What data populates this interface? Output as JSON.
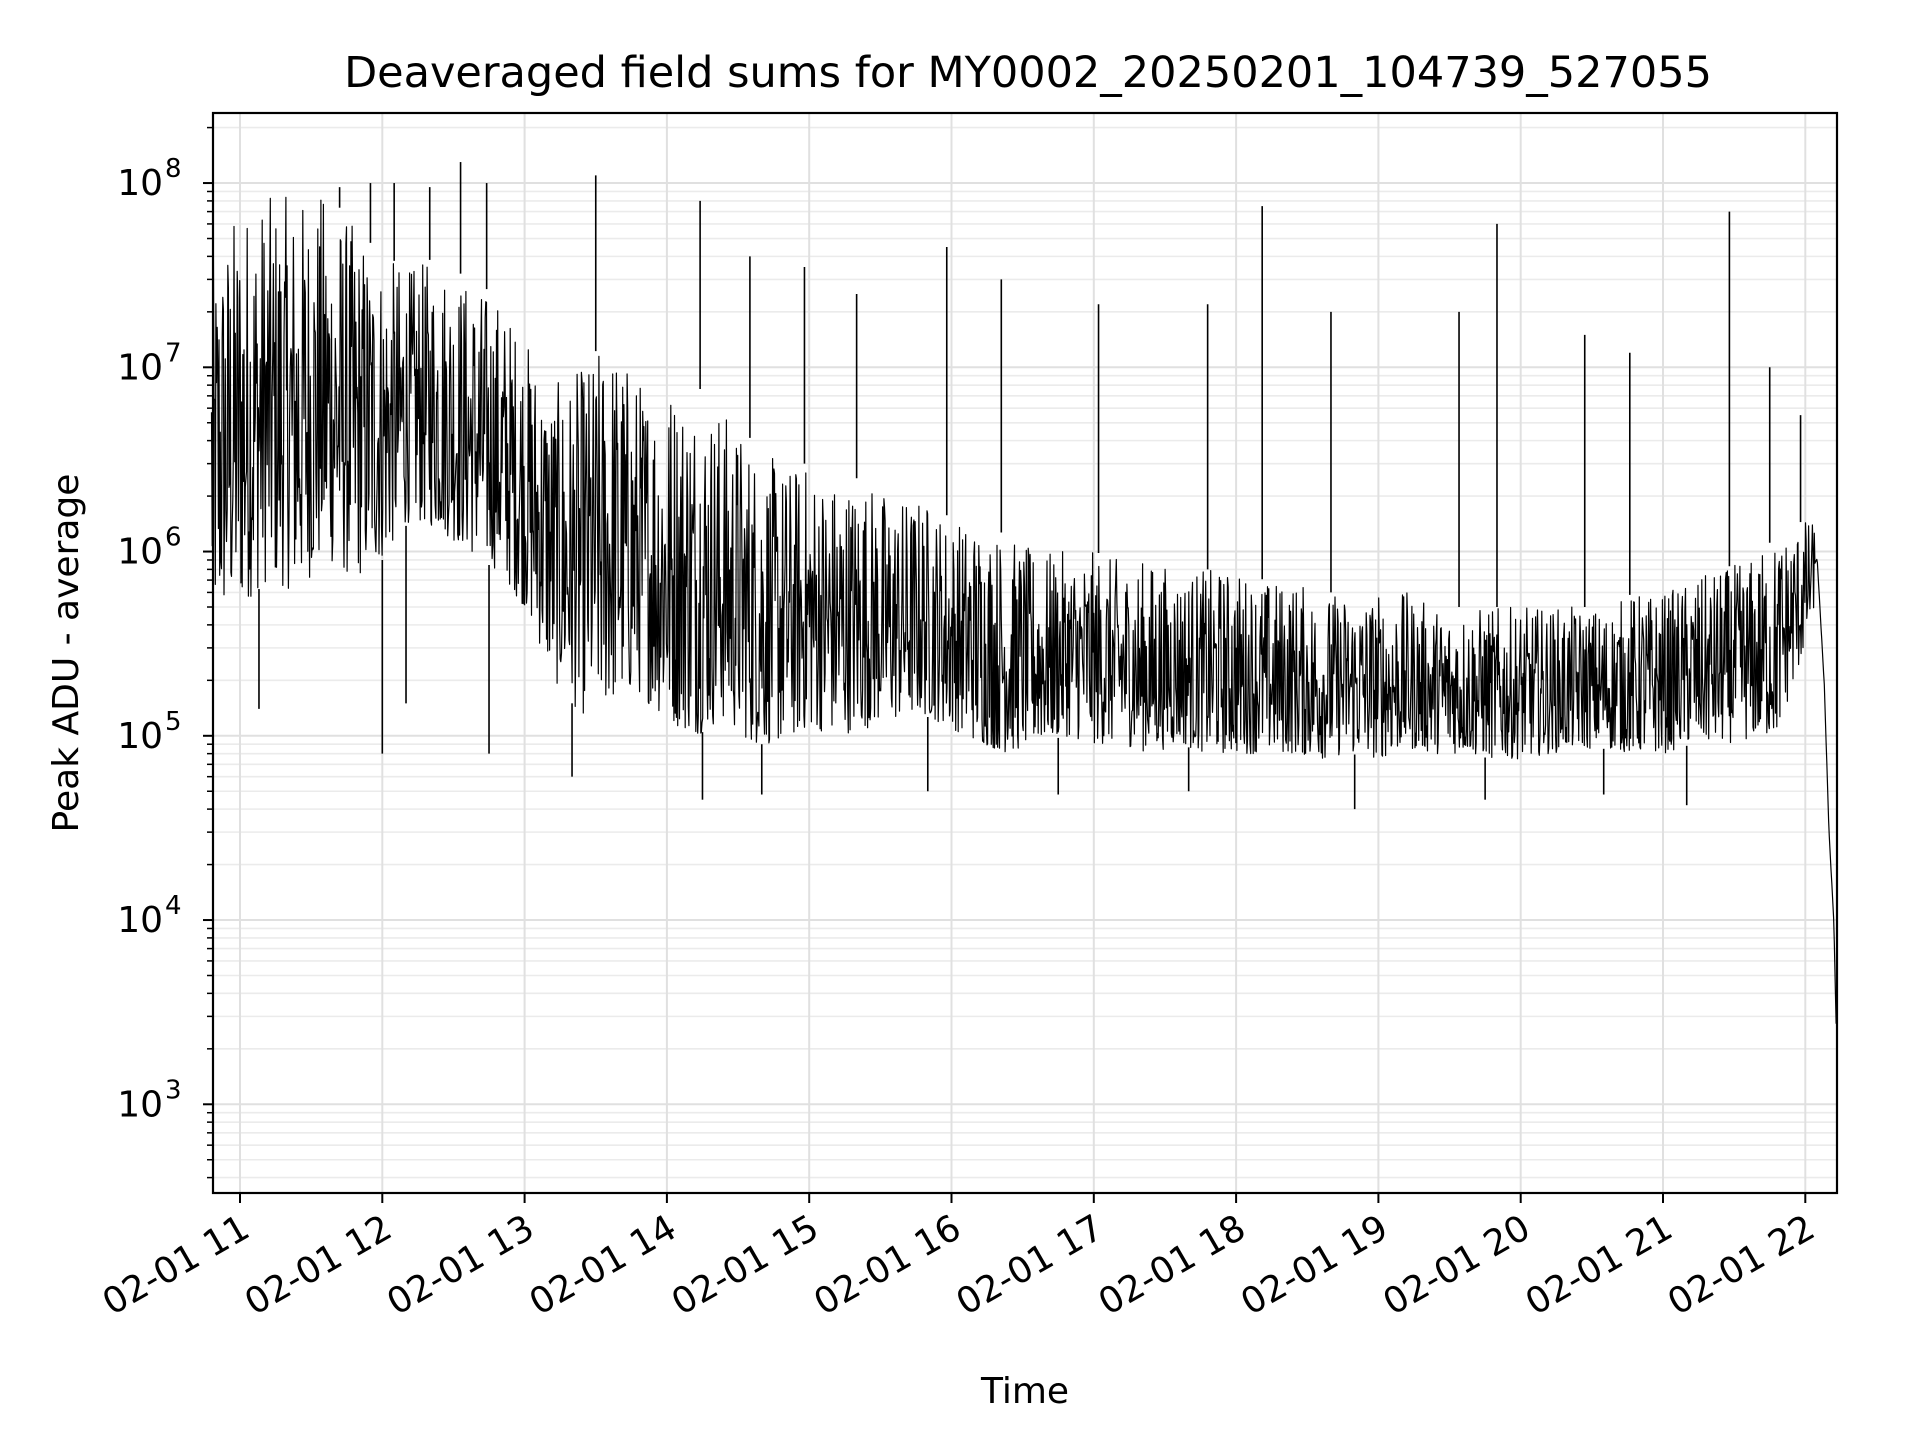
{
  "chart_data": {
    "type": "line",
    "title": "Deaveraged field sums for MY0002_20250201_104739_527055",
    "xlabel": "Time",
    "ylabel": "Peak ADU - average",
    "x_tick_labels": [
      "02-01 11",
      "02-01 12",
      "02-01 13",
      "02-01 14",
      "02-01 15",
      "02-01 16",
      "02-01 17",
      "02-01 18",
      "02-01 19",
      "02-01 20",
      "02-01 21",
      "02-01 22"
    ],
    "y_tick_labels": [
      {
        "base": "10",
        "exp": "3"
      },
      {
        "base": "10",
        "exp": "4"
      },
      {
        "base": "10",
        "exp": "5"
      },
      {
        "base": "10",
        "exp": "6"
      },
      {
        "base": "10",
        "exp": "7"
      },
      {
        "base": "10",
        "exp": "8"
      }
    ],
    "x_range": [
      "2025-02-01 10:47",
      "2025-02-01 22:13"
    ],
    "y_scale": "log",
    "ylim": [
      330,
      240000000
    ],
    "grid": true,
    "line_color": "#000000",
    "series": [
      {
        "x": [
          "10:48",
          "11:00",
          "11:12",
          "11:24",
          "11:36",
          "11:48",
          "12:00",
          "12:12",
          "12:24",
          "12:36",
          "12:48",
          "13:00",
          "13:12",
          "13:24",
          "13:36",
          "13:48",
          "14:00",
          "14:12",
          "14:24",
          "14:36",
          "14:48",
          "15:00",
          "15:12",
          "15:24",
          "15:36",
          "15:48",
          "16:00",
          "16:12",
          "16:24",
          "16:36",
          "16:48",
          "17:00",
          "17:12",
          "17:24",
          "17:36",
          "17:48",
          "18:00",
          "18:12",
          "18:24",
          "18:36",
          "18:48",
          "19:00",
          "19:12",
          "19:24",
          "19:36",
          "19:48",
          "20:00",
          "20:12",
          "20:24",
          "20:36",
          "20:48",
          "21:00",
          "21:12",
          "21:24",
          "21:36",
          "21:48",
          "22:00",
          "22:05",
          "22:08",
          "22:10",
          "22:12",
          "22:13"
        ],
        "low": [
          400000,
          500000,
          700000,
          600000,
          900000,
          700000,
          900000,
          1500000,
          1300000,
          1000000,
          800000,
          500000,
          200000,
          130000,
          150000,
          170000,
          120000,
          100000,
          120000,
          90000,
          90000,
          110000,
          100000,
          110000,
          120000,
          130000,
          110000,
          90000,
          80000,
          90000,
          100000,
          90000,
          90000,
          80000,
          90000,
          80000,
          80000,
          80000,
          80000,
          75000,
          80000,
          75000,
          85000,
          80000,
          80000,
          75000,
          75000,
          80000,
          85000,
          85000,
          80000,
          80000,
          90000,
          90000,
          95000,
          100000,
          300000,
          600000,
          60000,
          15000,
          5000,
          2500
        ],
        "high": [
          40000000,
          80000000,
          85000000,
          85000000,
          90000000,
          60000000,
          40000000,
          35000000,
          40000000,
          30000000,
          25000000,
          15000000,
          8000000,
          10000000,
          15000000,
          9000000,
          9000000,
          8000000,
          6000000,
          4000000,
          3000000,
          3000000,
          2500000,
          2500000,
          2000000,
          2000000,
          1500000,
          1500000,
          1200000,
          1000000,
          1000000,
          1000000,
          900000,
          900000,
          800000,
          800000,
          800000,
          700000,
          700000,
          600000,
          600000,
          600000,
          600000,
          500000,
          500000,
          500000,
          500000,
          500000,
          500000,
          500000,
          600000,
          600000,
          700000,
          800000,
          900000,
          1200000,
          1500000,
          1400000,
          600000,
          60000,
          20000,
          3000
        ],
        "spikes": [
          {
            "x": "11:42",
            "y": 95000000
          },
          {
            "x": "11:55",
            "y": 100000000
          },
          {
            "x": "12:05",
            "y": 100000000
          },
          {
            "x": "12:20",
            "y": 95000000
          },
          {
            "x": "12:33",
            "y": 130000000
          },
          {
            "x": "12:44",
            "y": 100000000
          },
          {
            "x": "13:30",
            "y": 110000000
          },
          {
            "x": "14:14",
            "y": 80000000
          },
          {
            "x": "14:35",
            "y": 40000000
          },
          {
            "x": "14:58",
            "y": 35000000
          },
          {
            "x": "15:20",
            "y": 25000000
          },
          {
            "x": "15:58",
            "y": 45000000
          },
          {
            "x": "16:21",
            "y": 30000000
          },
          {
            "x": "17:02",
            "y": 22000000
          },
          {
            "x": "17:48",
            "y": 22000000
          },
          {
            "x": "18:11",
            "y": 75000000
          },
          {
            "x": "18:40",
            "y": 20000000
          },
          {
            "x": "19:34",
            "y": 20000000
          },
          {
            "x": "19:50",
            "y": 60000000
          },
          {
            "x": "20:27",
            "y": 15000000
          },
          {
            "x": "20:46",
            "y": 12000000
          },
          {
            "x": "21:28",
            "y": 70000000
          },
          {
            "x": "21:45",
            "y": 10000000
          },
          {
            "x": "21:58",
            "y": 5500000
          }
        ],
        "dips": [
          {
            "x": "11:08",
            "y": 140000
          },
          {
            "x": "12:00",
            "y": 80000
          },
          {
            "x": "12:10",
            "y": 150000
          },
          {
            "x": "12:45",
            "y": 80000
          },
          {
            "x": "13:20",
            "y": 60000
          },
          {
            "x": "14:15",
            "y": 45000
          },
          {
            "x": "14:40",
            "y": 48000
          },
          {
            "x": "15:50",
            "y": 50000
          },
          {
            "x": "16:45",
            "y": 48000
          },
          {
            "x": "17:40",
            "y": 50000
          },
          {
            "x": "18:50",
            "y": 40000
          },
          {
            "x": "19:45",
            "y": 45000
          },
          {
            "x": "20:35",
            "y": 48000
          },
          {
            "x": "21:10",
            "y": 42000
          }
        ]
      }
    ]
  }
}
